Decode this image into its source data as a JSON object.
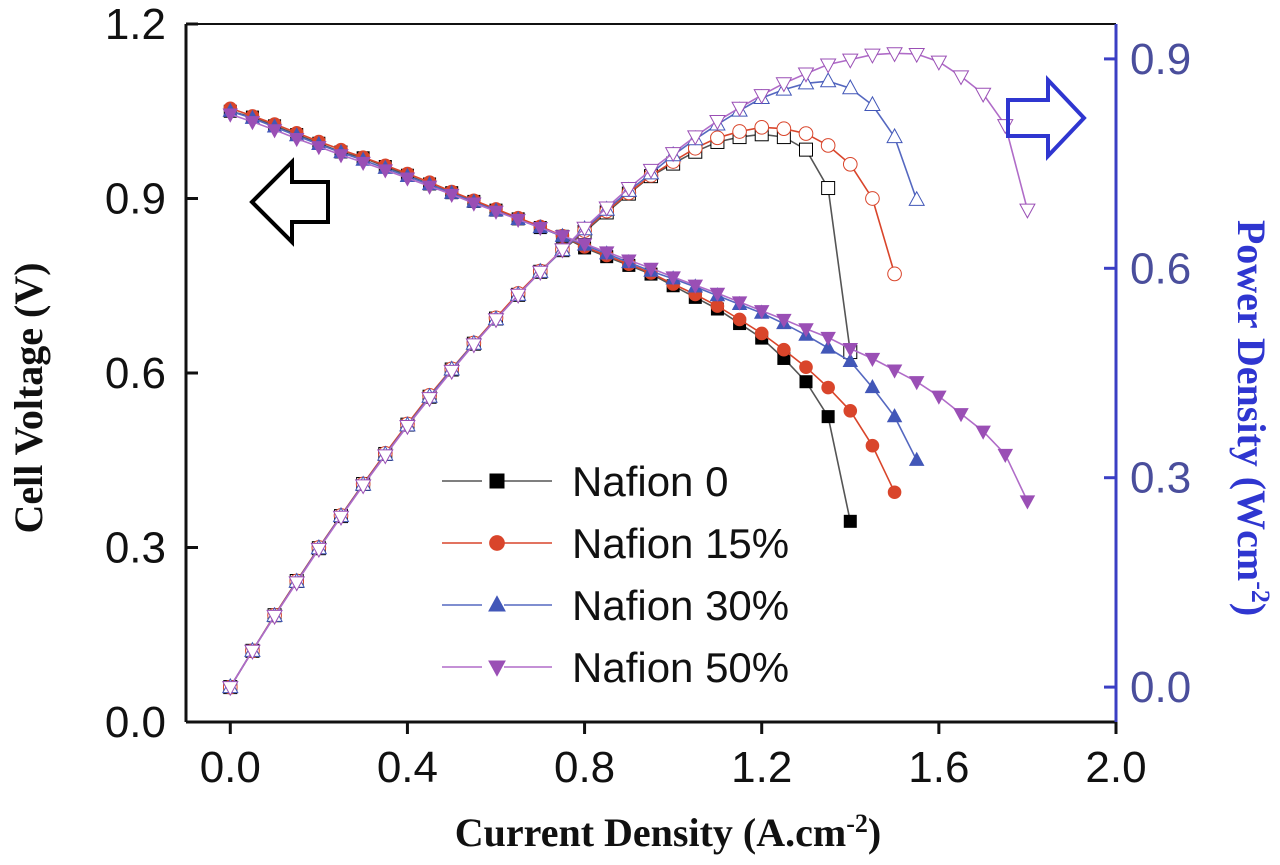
{
  "chart_data": {
    "type": "line",
    "title": "",
    "xlabel": "Current Density (A.cm",
    "xlabel_sup": "-2",
    "xlabel_end": ")",
    "ylabel_left": "Cell Voltage (V)",
    "ylabel_right": "Power Density (Wcm",
    "ylabel_right_sup": "-2",
    "ylabel_right_end": ")",
    "xlim": [
      -0.1,
      2.0
    ],
    "ylim_left": [
      0.0,
      1.2
    ],
    "ylim_right": [
      -0.05,
      0.95
    ],
    "x_ticks": [
      "0.0",
      "0.4",
      "0.8",
      "1.2",
      "1.6",
      "2.0"
    ],
    "y_left_ticks": [
      "0.0",
      "0.3",
      "0.6",
      "0.9",
      "1.2"
    ],
    "y_right_ticks": [
      "0.0",
      "0.3",
      "0.6",
      "0.9"
    ],
    "legend_position": "lower-center",
    "annotations": [
      "arrow-left: voltage curves read on left axis",
      "arrow-right: power curves read on right axis"
    ],
    "colors": {
      "axis": "#111111",
      "right_axis": "#3b3fc4",
      "right_tick": "#4a4e9c",
      "right_title": "#2f36d0"
    },
    "series": [
      {
        "name": "Nafion 0",
        "marker": "square",
        "color": "#000000",
        "line_color": "#555555",
        "voltage": {
          "x": [
            0,
            0.05,
            0.1,
            0.15,
            0.2,
            0.25,
            0.3,
            0.35,
            0.4,
            0.45,
            0.5,
            0.55,
            0.6,
            0.65,
            0.7,
            0.75,
            0.8,
            0.85,
            0.9,
            0.95,
            1.0,
            1.05,
            1.1,
            1.15,
            1.2,
            1.25,
            1.3,
            1.35,
            1.4
          ],
          "y": [
            1.05,
            1.04,
            1.025,
            1.01,
            0.995,
            0.98,
            0.97,
            0.955,
            0.94,
            0.925,
            0.91,
            0.895,
            0.88,
            0.865,
            0.85,
            0.835,
            0.815,
            0.8,
            0.785,
            0.77,
            0.75,
            0.73,
            0.71,
            0.685,
            0.66,
            0.625,
            0.585,
            0.525,
            0.345
          ]
        },
        "power": {
          "x": [
            0,
            0.05,
            0.1,
            0.15,
            0.2,
            0.25,
            0.3,
            0.35,
            0.4,
            0.45,
            0.5,
            0.55,
            0.6,
            0.65,
            0.7,
            0.75,
            0.8,
            0.85,
            0.9,
            0.95,
            1.0,
            1.05,
            1.1,
            1.15,
            1.2,
            1.25,
            1.3,
            1.35,
            1.4
          ],
          "y": [
            0.0,
            0.052,
            0.103,
            0.152,
            0.199,
            0.245,
            0.291,
            0.334,
            0.376,
            0.416,
            0.455,
            0.492,
            0.528,
            0.562,
            0.595,
            0.626,
            0.652,
            0.68,
            0.707,
            0.732,
            0.75,
            0.767,
            0.781,
            0.788,
            0.792,
            0.788,
            0.77,
            0.715,
            0.48
          ]
        }
      },
      {
        "name": "Nafion 15%",
        "marker": "circle",
        "color": "#d9452b",
        "line_color": "#d9452b",
        "voltage": {
          "x": [
            0,
            0.05,
            0.1,
            0.15,
            0.2,
            0.25,
            0.3,
            0.35,
            0.4,
            0.45,
            0.5,
            0.55,
            0.6,
            0.65,
            0.7,
            0.75,
            0.8,
            0.85,
            0.9,
            0.95,
            1.0,
            1.05,
            1.1,
            1.15,
            1.2,
            1.25,
            1.3,
            1.35,
            1.4,
            1.45,
            1.5
          ],
          "y": [
            1.055,
            1.042,
            1.028,
            1.013,
            0.998,
            0.984,
            0.971,
            0.957,
            0.943,
            0.928,
            0.912,
            0.897,
            0.882,
            0.867,
            0.852,
            0.836,
            0.817,
            0.802,
            0.787,
            0.772,
            0.753,
            0.735,
            0.715,
            0.692,
            0.668,
            0.64,
            0.61,
            0.575,
            0.535,
            0.475,
            0.395
          ]
        },
        "power": {
          "x": [
            0,
            0.05,
            0.1,
            0.15,
            0.2,
            0.25,
            0.3,
            0.35,
            0.4,
            0.45,
            0.5,
            0.55,
            0.6,
            0.65,
            0.7,
            0.75,
            0.8,
            0.85,
            0.9,
            0.95,
            1.0,
            1.05,
            1.1,
            1.15,
            1.2,
            1.25,
            1.3,
            1.35,
            1.4,
            1.45,
            1.5
          ],
          "y": [
            0.0,
            0.052,
            0.103,
            0.152,
            0.2,
            0.246,
            0.291,
            0.335,
            0.377,
            0.418,
            0.456,
            0.493,
            0.529,
            0.564,
            0.596,
            0.627,
            0.654,
            0.682,
            0.708,
            0.733,
            0.753,
            0.772,
            0.787,
            0.796,
            0.802,
            0.8,
            0.793,
            0.776,
            0.749,
            0.7,
            0.592
          ]
        }
      },
      {
        "name": "Nafion 30%",
        "marker": "triangle-up",
        "color": "#4257b8",
        "line_color": "#5568c0",
        "voltage": {
          "x": [
            0,
            0.05,
            0.1,
            0.15,
            0.2,
            0.25,
            0.3,
            0.35,
            0.4,
            0.45,
            0.5,
            0.55,
            0.6,
            0.65,
            0.7,
            0.75,
            0.8,
            0.85,
            0.9,
            0.95,
            1.0,
            1.05,
            1.1,
            1.15,
            1.2,
            1.25,
            1.3,
            1.35,
            1.4,
            1.45,
            1.5,
            1.55
          ],
          "y": [
            1.05,
            1.038,
            1.023,
            1.008,
            0.993,
            0.979,
            0.966,
            0.952,
            0.938,
            0.924,
            0.909,
            0.894,
            0.879,
            0.864,
            0.85,
            0.835,
            0.82,
            0.805,
            0.79,
            0.775,
            0.762,
            0.748,
            0.733,
            0.718,
            0.703,
            0.685,
            0.665,
            0.643,
            0.62,
            0.575,
            0.525,
            0.45
          ]
        },
        "power": {
          "x": [
            0,
            0.05,
            0.1,
            0.15,
            0.2,
            0.25,
            0.3,
            0.35,
            0.4,
            0.45,
            0.5,
            0.55,
            0.6,
            0.65,
            0.7,
            0.75,
            0.8,
            0.85,
            0.9,
            0.95,
            1.0,
            1.05,
            1.1,
            1.15,
            1.2,
            1.25,
            1.3,
            1.35,
            1.4,
            1.45,
            1.5,
            1.55
          ],
          "y": [
            0.0,
            0.052,
            0.102,
            0.151,
            0.199,
            0.245,
            0.29,
            0.333,
            0.375,
            0.416,
            0.455,
            0.492,
            0.527,
            0.562,
            0.595,
            0.626,
            0.656,
            0.684,
            0.711,
            0.736,
            0.762,
            0.785,
            0.806,
            0.826,
            0.844,
            0.856,
            0.865,
            0.868,
            0.858,
            0.834,
            0.788,
            0.698
          ]
        }
      },
      {
        "name": "Nafion 50%",
        "marker": "triangle-down",
        "color": "#9a4fb5",
        "line_color": "#b06cc8",
        "voltage": {
          "x": [
            0,
            0.05,
            0.1,
            0.15,
            0.2,
            0.25,
            0.3,
            0.35,
            0.4,
            0.45,
            0.5,
            0.55,
            0.6,
            0.65,
            0.7,
            0.75,
            0.8,
            0.85,
            0.9,
            0.95,
            1.0,
            1.05,
            1.1,
            1.15,
            1.2,
            1.25,
            1.3,
            1.35,
            1.4,
            1.45,
            1.5,
            1.55,
            1.6,
            1.65,
            1.7,
            1.75,
            1.8
          ],
          "y": [
            1.045,
            1.032,
            1.018,
            1.003,
            0.989,
            0.975,
            0.962,
            0.949,
            0.935,
            0.921,
            0.907,
            0.892,
            0.878,
            0.864,
            0.85,
            0.836,
            0.822,
            0.808,
            0.794,
            0.78,
            0.765,
            0.751,
            0.737,
            0.722,
            0.707,
            0.692,
            0.676,
            0.661,
            0.642,
            0.625,
            0.605,
            0.585,
            0.56,
            0.53,
            0.5,
            0.46,
            0.38
          ]
        },
        "power": {
          "x": [
            0,
            0.05,
            0.1,
            0.15,
            0.2,
            0.25,
            0.3,
            0.35,
            0.4,
            0.45,
            0.5,
            0.55,
            0.6,
            0.65,
            0.7,
            0.75,
            0.8,
            0.85,
            0.9,
            0.95,
            1.0,
            1.05,
            1.1,
            1.15,
            1.2,
            1.25,
            1.3,
            1.35,
            1.4,
            1.45,
            1.5,
            1.55,
            1.6,
            1.65,
            1.7,
            1.75,
            1.8
          ],
          "y": [
            0.0,
            0.052,
            0.102,
            0.15,
            0.198,
            0.244,
            0.289,
            0.332,
            0.374,
            0.414,
            0.453,
            0.491,
            0.527,
            0.562,
            0.595,
            0.627,
            0.658,
            0.687,
            0.715,
            0.741,
            0.765,
            0.789,
            0.811,
            0.83,
            0.848,
            0.865,
            0.879,
            0.892,
            0.899,
            0.906,
            0.908,
            0.907,
            0.896,
            0.875,
            0.85,
            0.805,
            0.684
          ]
        }
      }
    ]
  }
}
